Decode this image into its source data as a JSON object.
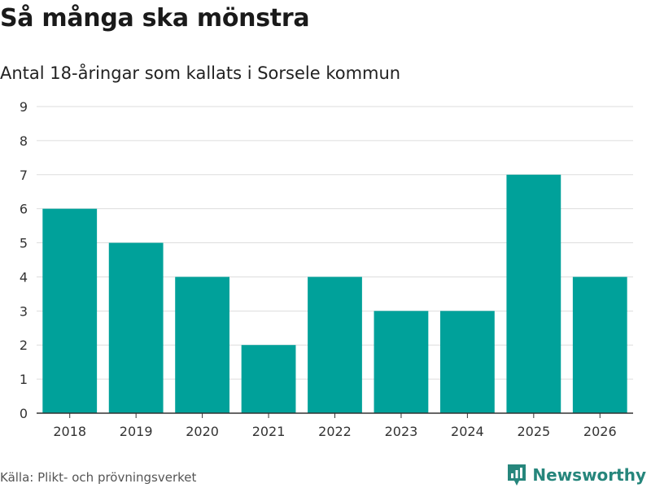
{
  "title": "Så många ska mönstra",
  "subtitle": "Antal 18-åringar som kallats i Sorsele kommun",
  "source": "Källa: Plikt- och prövningsverket",
  "brand": {
    "name": "Newsworthy",
    "icon": "newsworthy-logo-icon",
    "color": "#26867c"
  },
  "colors": {
    "bar": "#00a19a",
    "grid": "#dddddd",
    "axis": "#333333"
  },
  "chart_data": {
    "type": "bar",
    "title": "Så många ska mönstra",
    "subtitle": "Antal 18-åringar som kallats i Sorsele kommun",
    "xlabel": "",
    "ylabel": "",
    "categories": [
      "2018",
      "2019",
      "2020",
      "2021",
      "2022",
      "2023",
      "2024",
      "2025",
      "2026"
    ],
    "values": [
      6,
      5,
      4,
      2,
      4,
      3,
      3,
      7,
      4
    ],
    "ylim": [
      0,
      9
    ],
    "yticks": [
      0,
      1,
      2,
      3,
      4,
      5,
      6,
      7,
      8,
      9
    ],
    "grid": true,
    "legend": "none"
  }
}
